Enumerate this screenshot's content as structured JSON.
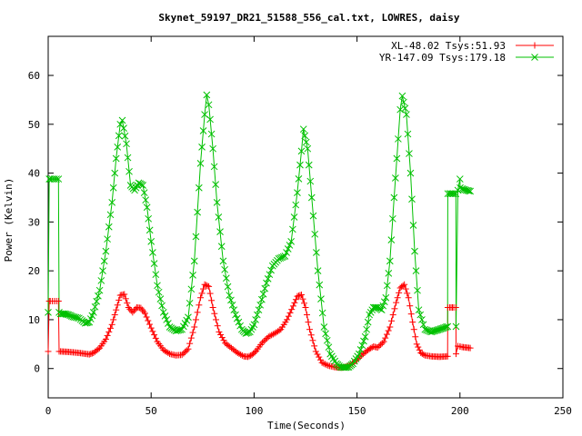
{
  "chart_data": {
    "type": "line",
    "title": "Skynet_59197_DR21_51588_556_cal.txt, LOWRES, daisy",
    "xlabel": "Time(Seconds)",
    "ylabel": "Power (Kelvin)",
    "xlim": [
      0,
      250
    ],
    "ylim": [
      -6,
      68
    ],
    "xticks": [
      0,
      50,
      100,
      150,
      200,
      250
    ],
    "yticks": [
      0,
      10,
      20,
      30,
      40,
      50,
      60
    ],
    "grid": false,
    "legend_position": "top-right",
    "series": [
      {
        "name": "XL-48.02 Tsys:51.93",
        "color": "#ff0000",
        "marker": "plus",
        "x": [
          0,
          0.5,
          1,
          2,
          3,
          4,
          5,
          5.3,
          6,
          10,
          15,
          20,
          22,
          25,
          28,
          31,
          33,
          35,
          37,
          39,
          41,
          43,
          45,
          47,
          50,
          53,
          56,
          59,
          62,
          65,
          68,
          71,
          74,
          76,
          78,
          80,
          83,
          86,
          89,
          92,
          95,
          97,
          99,
          101,
          104,
          107,
          110,
          113,
          116,
          119,
          121,
          123,
          125,
          127,
          130,
          133,
          136,
          139,
          141,
          143,
          145,
          147,
          150,
          153,
          156,
          158,
          160,
          163,
          166,
          169,
          171,
          173,
          175,
          177,
          179,
          181,
          183,
          186,
          190,
          194,
          194.1,
          195,
          197,
          198,
          198.1,
          199,
          200,
          200.1,
          201,
          203,
          205
        ],
        "y": [
          3.5,
          13.8,
          13.8,
          13.8,
          13.8,
          13.8,
          13.8,
          3.5,
          3.5,
          3.4,
          3.2,
          2.9,
          3.2,
          4.2,
          6.0,
          9.0,
          12.0,
          15.0,
          15.2,
          12.5,
          11.5,
          12.5,
          12.4,
          11.3,
          8.3,
          5.5,
          3.8,
          3.0,
          2.7,
          2.8,
          4.0,
          8.5,
          14.5,
          17.2,
          16.8,
          12.5,
          7.5,
          5.2,
          4.2,
          3.2,
          2.5,
          2.4,
          2.8,
          3.6,
          5.3,
          6.5,
          7.2,
          8.0,
          10.0,
          12.8,
          14.8,
          15.1,
          12.5,
          8.0,
          3.5,
          1.2,
          0.6,
          0.3,
          0.2,
          0.2,
          0.4,
          0.8,
          1.8,
          3.0,
          4.0,
          4.5,
          4.3,
          5.5,
          8.5,
          13.5,
          16.5,
          17.2,
          14.5,
          9.5,
          5.0,
          3.2,
          2.7,
          2.5,
          2.4,
          2.5,
          12.5,
          12.5,
          12.5,
          12.5,
          3.0,
          4.6,
          4.5,
          4.5,
          4.4,
          4.3,
          4.2
        ]
      },
      {
        "name": "YR-147.09 Tsys:179.18",
        "color": "#00c000",
        "marker": "cross",
        "x": [
          0,
          0.5,
          1,
          2,
          3,
          4,
          5,
          5.3,
          6,
          8,
          10,
          12,
          15,
          18,
          20,
          22,
          25,
          28,
          31,
          33,
          35,
          36,
          38,
          40,
          42,
          44,
          46,
          48,
          50,
          53,
          56,
          59,
          62,
          65,
          68,
          71,
          74,
          76,
          77,
          78,
          80,
          82,
          85,
          88,
          91,
          94,
          96,
          98,
          100,
          103,
          106,
          109,
          112,
          115,
          118,
          121,
          123,
          124,
          126,
          128,
          131,
          134,
          137,
          140,
          142,
          144,
          146,
          148,
          151,
          154,
          156,
          158,
          160,
          162,
          164,
          166,
          168,
          170,
          171,
          172,
          174,
          176,
          178,
          180,
          183,
          186,
          190,
          194,
          194.1,
          195,
          197,
          198,
          198.1,
          199,
          200,
          200.1,
          201,
          203,
          205
        ],
        "y": [
          11.5,
          38.8,
          38.8,
          38.8,
          38.8,
          38.8,
          38.8,
          11.5,
          11.2,
          11.2,
          11.0,
          10.6,
          10.3,
          9.3,
          9.5,
          11.5,
          16.0,
          24.0,
          34.0,
          43.0,
          50.0,
          50.8,
          46.0,
          37.5,
          36.5,
          38.0,
          37.5,
          33.0,
          26.0,
          17.0,
          11.5,
          8.5,
          7.7,
          8.0,
          10.5,
          22.0,
          42.0,
          52.0,
          56.0,
          54.0,
          45.0,
          34.0,
          22.0,
          15.0,
          11.0,
          8.0,
          7.2,
          7.5,
          9.0,
          13.0,
          17.5,
          21.0,
          22.5,
          23.0,
          26.0,
          36.0,
          44.5,
          49.0,
          45.0,
          35.0,
          20.0,
          8.5,
          3.0,
          1.0,
          0.3,
          0.2,
          0.3,
          1.0,
          3.0,
          6.5,
          11.0,
          12.5,
          12.5,
          12.0,
          14.5,
          22.0,
          35.0,
          47.0,
          53.0,
          55.8,
          52.0,
          40.0,
          24.0,
          12.0,
          8.0,
          7.5,
          8.0,
          8.6,
          35.8,
          35.8,
          35.8,
          35.8,
          8.6,
          36.5,
          38.8,
          37.0,
          36.8,
          36.5,
          36.3
        ]
      }
    ]
  }
}
